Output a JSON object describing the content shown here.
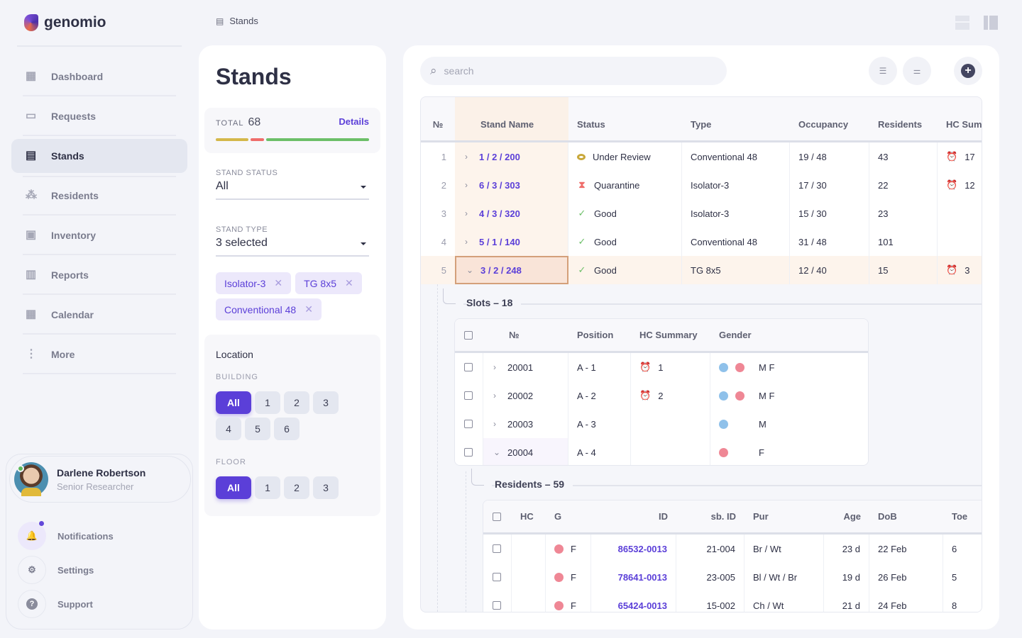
{
  "app": {
    "name": "genomio"
  },
  "breadcrumb": {
    "label": "Stands"
  },
  "sidebar": {
    "items": [
      {
        "label": "Dashboard",
        "icon": "dashboard-icon"
      },
      {
        "label": "Requests",
        "icon": "inbox-icon"
      },
      {
        "label": "Stands",
        "icon": "building-icon",
        "active": true
      },
      {
        "label": "Residents",
        "icon": "paw-icon"
      },
      {
        "label": "Inventory",
        "icon": "archive-icon"
      },
      {
        "label": "Reports",
        "icon": "chart-icon"
      },
      {
        "label": "Calendar",
        "icon": "calendar-icon"
      },
      {
        "label": "More",
        "icon": "more-icon"
      }
    ]
  },
  "user": {
    "name": "Darlene Robertson",
    "role": "Senior Researcher"
  },
  "utilities": {
    "notifications": "Notifications",
    "settings": "Settings",
    "support": "Support"
  },
  "filters": {
    "title": "Stands",
    "total_label": "TOTAL",
    "total": "68",
    "details": "Details",
    "status_bar": [
      {
        "color": "#d4b84a",
        "fraction": 0.22
      },
      {
        "color": "#ef6d6a",
        "fraction": 0.09
      },
      {
        "color": "#6cbf68",
        "fraction": 0.69
      }
    ],
    "stand_status": {
      "label": "STAND STATUS",
      "value": "All"
    },
    "stand_type": {
      "label": "STAND TYPE",
      "value": "3 selected"
    },
    "chips": [
      "Isolator-3",
      "TG 8x5",
      "Conventional 48"
    ],
    "location": {
      "title": "Location",
      "building_label": "BUILDING",
      "buildings": [
        "All",
        "1",
        "2",
        "3",
        "4",
        "5",
        "6"
      ],
      "floor_label": "FLOOR",
      "floors": [
        "All",
        "1",
        "2",
        "3"
      ]
    }
  },
  "search": {
    "placeholder": "search"
  },
  "stands_table": {
    "columns": [
      "№",
      "Stand Name",
      "Status",
      "Type",
      "Occupancy",
      "Residents",
      "HC Summ"
    ],
    "rows": [
      {
        "n": "1",
        "name": "1 / 2 / 200",
        "status": "Under Review",
        "status_icon": "eye",
        "type": "Conventional 48",
        "occ": "19 / 48",
        "res": "43",
        "hc": "17"
      },
      {
        "n": "2",
        "name": "6 / 3 / 303",
        "status": "Quarantine",
        "status_icon": "hourglass",
        "type": "Isolator-3",
        "occ": "17 / 30",
        "res": "22",
        "hc": "12"
      },
      {
        "n": "3",
        "name": "4 / 3 / 320",
        "status": "Good",
        "status_icon": "check",
        "type": "Isolator-3",
        "occ": "15 / 30",
        "res": "23",
        "hc": ""
      },
      {
        "n": "4",
        "name": "5 / 1 / 140",
        "status": "Good",
        "status_icon": "check",
        "type": "Conventional 48",
        "occ": "31 / 48",
        "res": "101",
        "hc": ""
      },
      {
        "n": "5",
        "name": "3 / 2 / 248",
        "status": "Good",
        "status_icon": "check",
        "type": "TG 8x5",
        "occ": "12 / 40",
        "res": "15",
        "hc": "3",
        "expanded": true
      }
    ]
  },
  "slots": {
    "title": "Slots – 18",
    "columns": [
      "№",
      "Position",
      "HC Summary",
      "Gender"
    ],
    "rows": [
      {
        "n": "20001",
        "pos": "A - 1",
        "hc": "1",
        "genders": [
          "M",
          "F"
        ],
        "label": "M F"
      },
      {
        "n": "20002",
        "pos": "A - 2",
        "hc": "2",
        "genders": [
          "M",
          "F"
        ],
        "label": "M F"
      },
      {
        "n": "20003",
        "pos": "A - 3",
        "hc": "",
        "genders": [
          "M"
        ],
        "label": "M"
      },
      {
        "n": "20004",
        "pos": "A - 4",
        "hc": "",
        "genders": [
          "F"
        ],
        "label": "F",
        "expanded": true
      }
    ]
  },
  "residents": {
    "title": "Residents – 59",
    "columns": [
      "HC",
      "G",
      "ID",
      "sb. ID",
      "Pur",
      "Age",
      "DoB",
      "Toe"
    ],
    "rows": [
      {
        "g": "F",
        "id": "86532-0013",
        "sbid": "21-004",
        "pur": "Br / Wt",
        "age": "23 d",
        "dob": "22 Feb",
        "toe": "6"
      },
      {
        "g": "F",
        "id": "78641-0013",
        "sbid": "23-005",
        "pur": "Bl / Wt / Br",
        "age": "19 d",
        "dob": "26 Feb",
        "toe": "5"
      },
      {
        "g": "F",
        "id": "65424-0013",
        "sbid": "15-002",
        "pur": "Ch / Wt",
        "age": "21 d",
        "dob": "24 Feb",
        "toe": "8"
      }
    ]
  },
  "colors": {
    "accent": "#5b3fd8",
    "male": "#8fc1ea",
    "female": "#ef8795",
    "alarm": "#e8524a"
  }
}
